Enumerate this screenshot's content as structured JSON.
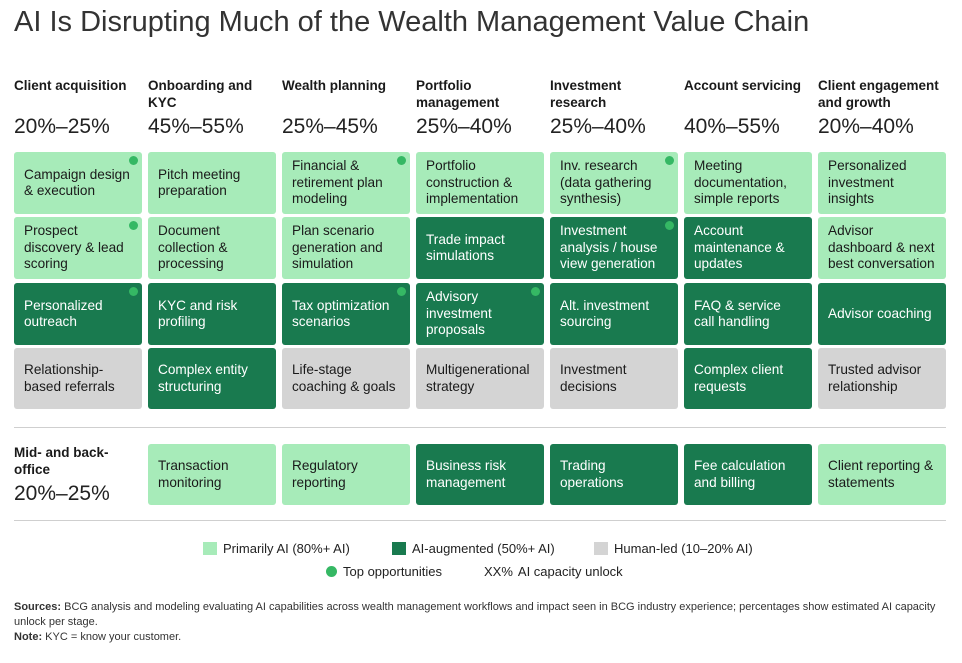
{
  "title": "AI Is Disrupting Much of the Wealth Management Value Chain",
  "colors": {
    "primary": "#a7ebb9",
    "augmented": "#197a4f",
    "human": "#d4d4d4",
    "dot": "#35b864"
  },
  "chart_data": {
    "type": "table",
    "stages": [
      {
        "name": "Client acquisition",
        "pct": "20%–25%",
        "cells": [
          {
            "text": "Campaign design & execution",
            "cat": "primary",
            "top": true
          },
          {
            "text": "Prospect discovery & lead scoring",
            "cat": "primary",
            "top": true
          },
          {
            "text": "Personalized outreach",
            "cat": "augmented",
            "top": true
          },
          {
            "text": "Relationship-based referrals",
            "cat": "human",
            "top": false
          }
        ]
      },
      {
        "name": "Onboarding and KYC",
        "pct": "45%–55%",
        "cells": [
          {
            "text": "Pitch meeting preparation",
            "cat": "primary",
            "top": false
          },
          {
            "text": "Document collection & processing",
            "cat": "primary",
            "top": false
          },
          {
            "text": "KYC and risk profiling",
            "cat": "augmented",
            "top": false
          },
          {
            "text": "Complex entity structuring",
            "cat": "augmented",
            "top": false
          }
        ]
      },
      {
        "name": "Wealth planning",
        "pct": "25%–45%",
        "cells": [
          {
            "text": "Financial & retirement plan modeling",
            "cat": "primary",
            "top": true
          },
          {
            "text": "Plan scenario generation and simulation",
            "cat": "primary",
            "top": false
          },
          {
            "text": "Tax optimization scenarios",
            "cat": "augmented",
            "top": true
          },
          {
            "text": "Life-stage coaching & goals",
            "cat": "human",
            "top": false
          }
        ]
      },
      {
        "name": "Portfolio management",
        "pct": "25%–40%",
        "cells": [
          {
            "text": "Portfolio construction & implementation",
            "cat": "primary",
            "top": false
          },
          {
            "text": "Trade impact simulations",
            "cat": "augmented",
            "top": false
          },
          {
            "text": "Advisory investment proposals",
            "cat": "augmented",
            "top": true
          },
          {
            "text": "Multigenerational strategy",
            "cat": "human",
            "top": false
          }
        ]
      },
      {
        "name": "Investment research",
        "pct": "25%–40%",
        "cells": [
          {
            "text": "Inv. research (data gathering synthesis)",
            "cat": "primary",
            "top": true
          },
          {
            "text": "Investment analysis / house view generation",
            "cat": "augmented",
            "top": true
          },
          {
            "text": "Alt. investment sourcing",
            "cat": "augmented",
            "top": false
          },
          {
            "text": "Investment decisions",
            "cat": "human",
            "top": false
          }
        ]
      },
      {
        "name": "Account servicing",
        "pct": "40%–55%",
        "cells": [
          {
            "text": "Meeting documentation, simple reports",
            "cat": "primary",
            "top": false
          },
          {
            "text": "Account maintenance & updates",
            "cat": "augmented",
            "top": false
          },
          {
            "text": "FAQ & service call handling",
            "cat": "augmented",
            "top": false
          },
          {
            "text": "Complex client requests",
            "cat": "augmented",
            "top": false
          }
        ]
      },
      {
        "name": "Client engagement and growth",
        "pct": "20%–40%",
        "cells": [
          {
            "text": "Personalized investment insights",
            "cat": "primary",
            "top": false
          },
          {
            "text": "Advisor dashboard & next best conversation",
            "cat": "primary",
            "top": false
          },
          {
            "text": "Advisor coaching",
            "cat": "augmented",
            "top": false
          },
          {
            "text": "Trusted advisor relationship",
            "cat": "human",
            "top": false
          }
        ]
      }
    ],
    "mid_office": {
      "name": "Mid- and back-office",
      "pct": "20%–25%",
      "cells": [
        {
          "text": "Transaction monitoring",
          "cat": "primary"
        },
        {
          "text": "Regulatory reporting",
          "cat": "primary"
        },
        {
          "text": "Business risk management",
          "cat": "augmented"
        },
        {
          "text": "Trading operations",
          "cat": "augmented"
        },
        {
          "text": "Fee calculation and billing",
          "cat": "augmented"
        },
        {
          "text": "Client reporting & statements",
          "cat": "primary"
        }
      ]
    }
  },
  "legend": {
    "primary": "Primarily AI (80%+ AI)",
    "augmented": "AI-augmented (50%+ AI)",
    "human": "Human-led (10–20% AI)",
    "top": "Top opportunities",
    "unlock_key": "XX%",
    "unlock": "AI capacity unlock"
  },
  "notes": {
    "sources_label": "Sources:",
    "sources": "BCG analysis and modeling evaluating AI capabilities across wealth management workflows and impact seen in BCG industry experience; percentages show estimated AI capacity unlock per stage.",
    "note_label": "Note:",
    "note": "KYC = know your customer."
  }
}
